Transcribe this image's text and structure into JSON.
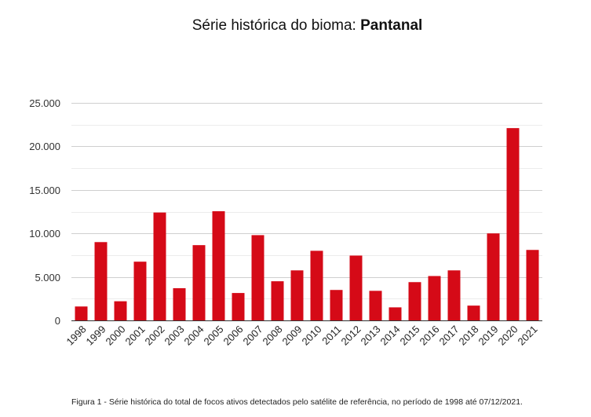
{
  "title": {
    "prefix": "Série histórica do bioma: ",
    "biome": "Pantanal"
  },
  "caption": "Figura 1 - Série histórica do total de focos ativos detectados pelo satélite de referência, no período de 1998 até 07/12/2021.",
  "chart_data": {
    "type": "bar",
    "categories": [
      "1998",
      "1999",
      "2000",
      "2001",
      "2002",
      "2003",
      "2004",
      "2005",
      "2006",
      "2007",
      "2008",
      "2009",
      "2010",
      "2011",
      "2012",
      "2013",
      "2014",
      "2015",
      "2016",
      "2017",
      "2018",
      "2019",
      "2020",
      "2021"
    ],
    "values": [
      1600,
      9000,
      2200,
      6750,
      12400,
      3700,
      8650,
      12550,
      3150,
      9800,
      4500,
      5750,
      8000,
      3500,
      7450,
      3400,
      1500,
      4400,
      5100,
      5750,
      1700,
      10000,
      22100,
      8100
    ],
    "ylim": [
      0,
      25000
    ],
    "yticks": [
      0,
      5000,
      10000,
      15000,
      20000,
      25000
    ],
    "ytick_labels": [
      "0",
      "5.000",
      "10.000",
      "15.000",
      "20.000",
      "25.000"
    ],
    "bar_color": "#d50a17",
    "grid": true,
    "legend": "none"
  }
}
